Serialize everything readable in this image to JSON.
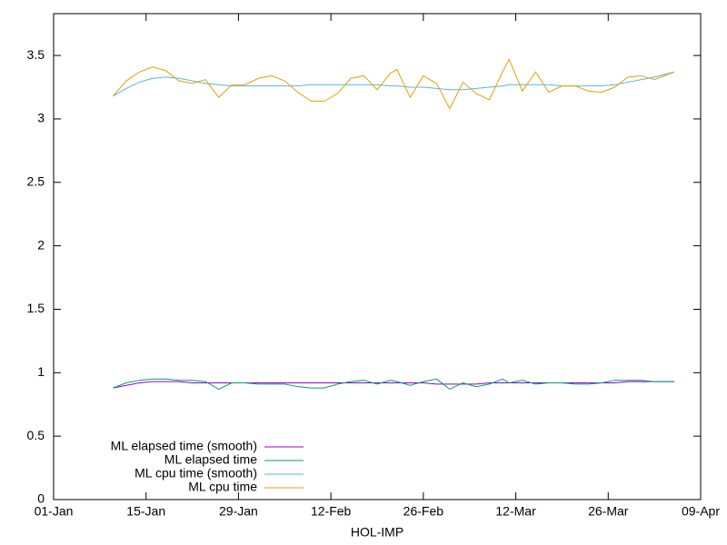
{
  "chart_data": {
    "type": "line",
    "xlabel": "HOL-IMP",
    "x": [
      "10-Jan",
      "12-Jan",
      "14-Jan",
      "16-Jan",
      "18-Jan",
      "20-Jan",
      "22-Jan",
      "24-Jan",
      "26-Jan",
      "28-Jan",
      "30-Jan",
      "01-Feb",
      "03-Feb",
      "05-Feb",
      "07-Feb",
      "09-Feb",
      "11-Feb",
      "13-Feb",
      "15-Feb",
      "17-Feb",
      "19-Feb",
      "21-Feb",
      "22-Feb",
      "24-Feb",
      "26-Feb",
      "28-Feb",
      "02-Mar",
      "04-Mar",
      "06-Mar",
      "08-Mar",
      "10-Mar",
      "11-Mar",
      "13-Mar",
      "15-Mar",
      "17-Mar",
      "19-Mar",
      "21-Mar",
      "23-Mar",
      "25-Mar",
      "27-Mar",
      "29-Mar",
      "31-Mar",
      "02-Apr",
      "05-Apr"
    ],
    "series": [
      {
        "name": "ML elapsed time (smooth)",
        "color": "#9400d3",
        "values": [
          0.88,
          0.9,
          0.92,
          0.93,
          0.93,
          0.93,
          0.92,
          0.92,
          0.92,
          0.92,
          0.92,
          0.92,
          0.92,
          0.92,
          0.92,
          0.92,
          0.92,
          0.92,
          0.92,
          0.92,
          0.92,
          0.92,
          0.92,
          0.92,
          0.92,
          0.91,
          0.91,
          0.91,
          0.91,
          0.92,
          0.92,
          0.92,
          0.92,
          0.92,
          0.92,
          0.92,
          0.92,
          0.92,
          0.92,
          0.92,
          0.93,
          0.93,
          0.93,
          0.93
        ]
      },
      {
        "name": "ML elapsed time",
        "color": "#009e73",
        "values": [
          0.88,
          0.92,
          0.94,
          0.95,
          0.95,
          0.94,
          0.94,
          0.93,
          0.87,
          0.92,
          0.92,
          0.91,
          0.91,
          0.91,
          0.89,
          0.88,
          0.88,
          0.91,
          0.93,
          0.94,
          0.91,
          0.94,
          0.93,
          0.9,
          0.93,
          0.95,
          0.87,
          0.92,
          0.89,
          0.91,
          0.95,
          0.92,
          0.94,
          0.91,
          0.92,
          0.92,
          0.91,
          0.91,
          0.92,
          0.94,
          0.94,
          0.94,
          0.93,
          0.93
        ]
      },
      {
        "name": "ML cpu time (smooth)",
        "color": "#56b4e9",
        "values": [
          3.18,
          3.24,
          3.29,
          3.32,
          3.33,
          3.32,
          3.3,
          3.28,
          3.27,
          3.26,
          3.26,
          3.26,
          3.26,
          3.26,
          3.26,
          3.27,
          3.27,
          3.27,
          3.27,
          3.27,
          3.27,
          3.26,
          3.26,
          3.25,
          3.25,
          3.24,
          3.23,
          3.23,
          3.24,
          3.25,
          3.26,
          3.27,
          3.27,
          3.27,
          3.27,
          3.26,
          3.26,
          3.26,
          3.26,
          3.27,
          3.29,
          3.31,
          3.33,
          3.37
        ]
      },
      {
        "name": "ML cpu time",
        "color": "#e69f00",
        "values": [
          3.18,
          3.3,
          3.37,
          3.41,
          3.38,
          3.3,
          3.28,
          3.31,
          3.17,
          3.27,
          3.27,
          3.32,
          3.34,
          3.3,
          3.21,
          3.14,
          3.14,
          3.2,
          3.32,
          3.34,
          3.23,
          3.36,
          3.39,
          3.17,
          3.34,
          3.28,
          3.08,
          3.29,
          3.2,
          3.15,
          3.37,
          3.47,
          3.22,
          3.37,
          3.21,
          3.26,
          3.26,
          3.22,
          3.21,
          3.25,
          3.33,
          3.34,
          3.31,
          3.37
        ]
      }
    ],
    "xlim": [
      "01-Jan",
      "09-Apr"
    ],
    "xticks": [
      "01-Jan",
      "15-Jan",
      "29-Jan",
      "12-Feb",
      "26-Feb",
      "12-Mar",
      "26-Mar",
      "09-Apr"
    ],
    "ylim": [
      0,
      3.83
    ],
    "yticks": [
      0,
      0.5,
      1,
      1.5,
      2,
      2.5,
      3,
      3.5
    ],
    "grid": false,
    "legend": "bottom-left"
  }
}
